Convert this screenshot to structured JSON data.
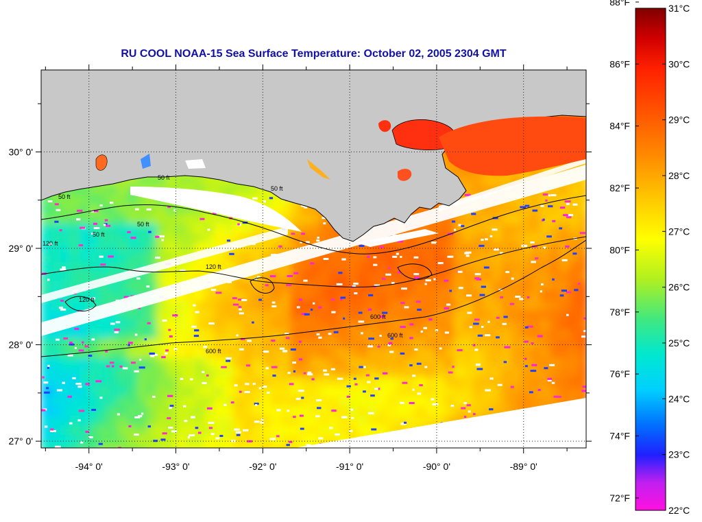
{
  "title": "RU COOL  NOAA-15  Sea Surface Temperature:  October 02, 2005 2304 GMT",
  "map": {
    "lon_range": [
      -94.55,
      -88.28
    ],
    "lat_range": [
      26.93,
      30.85
    ],
    "lon_ticks": [
      {
        "value": -94,
        "label": "-94° 0'"
      },
      {
        "value": -93,
        "label": "-93° 0'"
      },
      {
        "value": -92,
        "label": "-92° 0'"
      },
      {
        "value": -91,
        "label": "-91° 0'"
      },
      {
        "value": -90,
        "label": "-90° 0'"
      },
      {
        "value": -89,
        "label": "-89° 0'"
      }
    ],
    "lat_ticks": [
      {
        "value": 30,
        "label": "30° 0'"
      },
      {
        "value": 29,
        "label": "29° 0'"
      },
      {
        "value": 28,
        "label": "28° 0'"
      },
      {
        "value": 27,
        "label": "27° 0'"
      }
    ],
    "land_color": "#c8c8c8",
    "grid": "dotted",
    "contour_labels": [
      "50 ft",
      "50 ft",
      "50 ft",
      "50 ft",
      "50 ft",
      "120 ft",
      "120 ft",
      "120 ft",
      "600 ft",
      "600 ft",
      "600 ft"
    ]
  },
  "colorbar": {
    "celsius_range": [
      22,
      31
    ],
    "fahrenheit_range": [
      72,
      88
    ],
    "celsius_labels": [
      "31°C",
      "30°C",
      "29°C",
      "28°C",
      "27°C",
      "26°C",
      "25°C",
      "24°C",
      "23°C",
      "22°C"
    ],
    "fahrenheit_labels": [
      "88°F",
      "86°F",
      "84°F",
      "82°F",
      "80°F",
      "78°F",
      "76°F",
      "74°F",
      "72°F"
    ],
    "stops": [
      {
        "t": 0.0,
        "color": "#ff10e0"
      },
      {
        "t": 0.055,
        "color": "#c020f0"
      },
      {
        "t": 0.11,
        "color": "#2020ff"
      },
      {
        "t": 0.17,
        "color": "#0070ff"
      },
      {
        "t": 0.24,
        "color": "#00d0ff"
      },
      {
        "t": 0.31,
        "color": "#00e8d0"
      },
      {
        "t": 0.38,
        "color": "#40e880"
      },
      {
        "t": 0.46,
        "color": "#b0f020"
      },
      {
        "t": 0.54,
        "color": "#ffff00"
      },
      {
        "t": 0.62,
        "color": "#ffc800"
      },
      {
        "t": 0.71,
        "color": "#ff8800"
      },
      {
        "t": 0.8,
        "color": "#ff5000"
      },
      {
        "t": 0.88,
        "color": "#ff2000"
      },
      {
        "t": 0.94,
        "color": "#d00000"
      },
      {
        "t": 1.0,
        "color": "#800000"
      }
    ]
  }
}
